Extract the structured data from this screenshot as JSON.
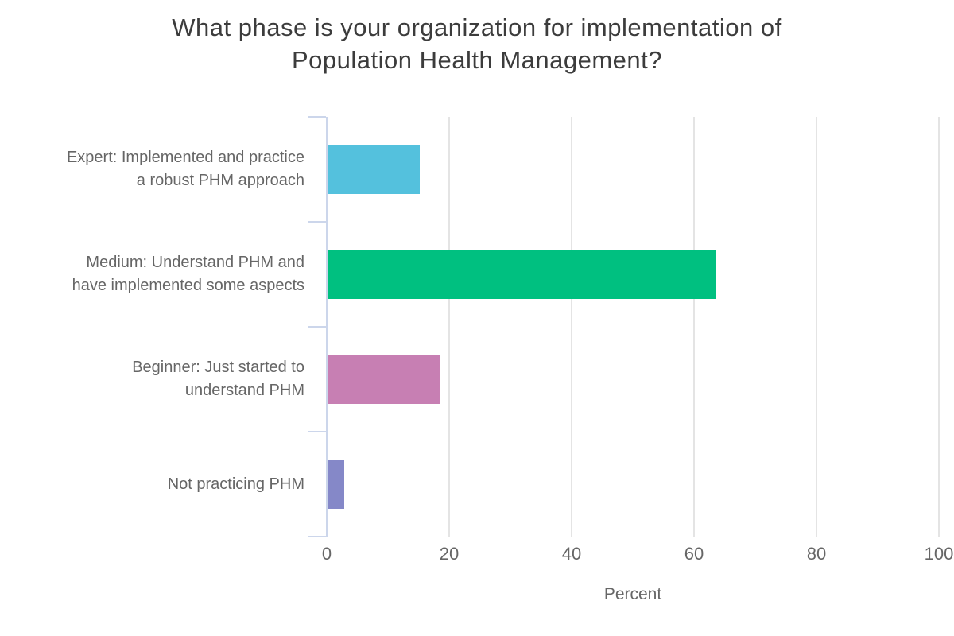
{
  "chart_data": {
    "type": "bar",
    "orientation": "horizontal",
    "title": "What phase is your organization for implementation of Population Health Management?",
    "categories": [
      "Expert: Implemented and practice a robust PHM approach",
      "Medium: Understand PHM and have implemented some aspects",
      "Beginner: Just started to understand PHM",
      "Not practicing PHM"
    ],
    "values": [
      15,
      63.5,
      18.5,
      2.7
    ],
    "xlabel": "Percent",
    "ylabel": "",
    "xlim": [
      0,
      100
    ],
    "xticks": [
      0,
      20,
      40,
      60,
      80,
      100
    ],
    "grid": "vertical gridlines",
    "legend": "none"
  },
  "display": {
    "title_lines": [
      "What phase is your organization for implementation of",
      "Population Health Management?"
    ],
    "category_label_lines": [
      [
        "Expert: Implemented and practice",
        "a robust PHM approach"
      ],
      [
        "Medium: Understand PHM and",
        "have implemented some aspects"
      ],
      [
        "Beginner: Just started to",
        "understand PHM"
      ],
      [
        "Not practicing PHM"
      ]
    ]
  },
  "colors": {
    "bar_colors": [
      "#54C1DD",
      "#00C080",
      "#C77FB3",
      "#8588C8"
    ],
    "axis_line": "#CCD6EB",
    "gridline": "#E4E4E4",
    "title_text": "#3C3C3C",
    "label_text": "#666666",
    "background": "#FFFFFF"
  }
}
